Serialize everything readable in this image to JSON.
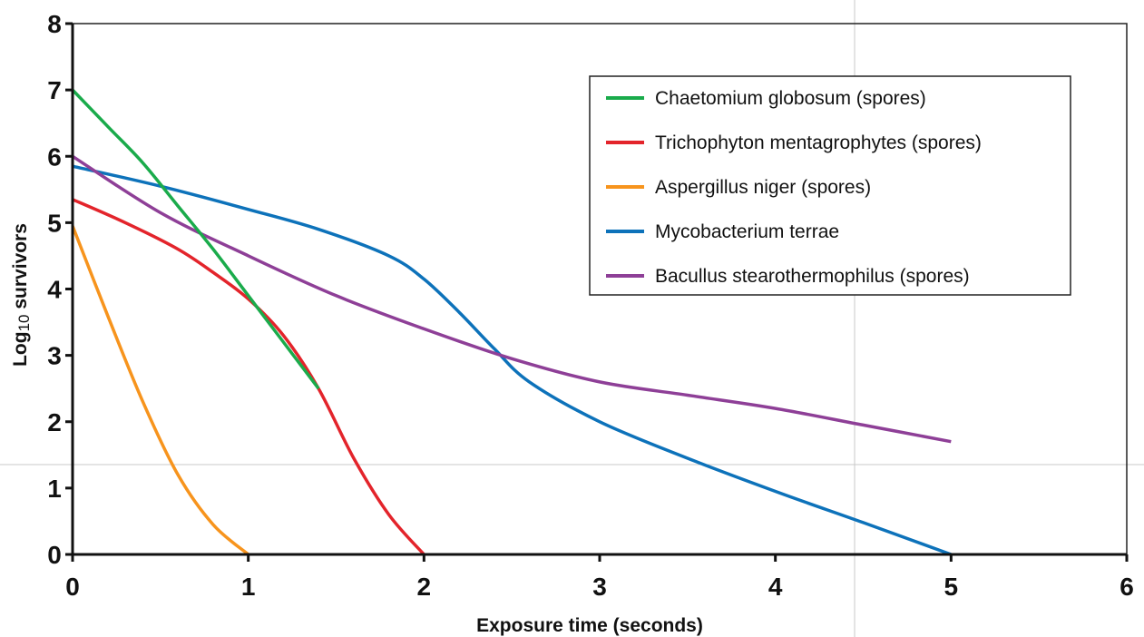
{
  "chart_data": {
    "type": "line",
    "title": "",
    "xlabel": "Exposure time (seconds)",
    "ylabel_parts": [
      "Log",
      "10",
      " survivors"
    ],
    "xlim": [
      0,
      6
    ],
    "ylim": [
      0,
      8
    ],
    "xticks": [
      0,
      1,
      2,
      3,
      4,
      5,
      6
    ],
    "yticks": [
      0,
      1,
      2,
      3,
      4,
      5,
      6,
      7,
      8
    ],
    "grid": false,
    "legend_position": "top-right",
    "series": [
      {
        "name": "Chaetomium globosum (spores)",
        "color": "#1aab4b",
        "points": [
          [
            0,
            7.0
          ],
          [
            0.2,
            6.45
          ],
          [
            0.4,
            5.9
          ],
          [
            0.6,
            5.25
          ],
          [
            0.8,
            4.6
          ],
          [
            1.0,
            3.9
          ],
          [
            1.2,
            3.2
          ],
          [
            1.4,
            2.5
          ]
        ]
      },
      {
        "name": "Trichophyton mentagrophytes (spores)",
        "color": "#e3242b",
        "points": [
          [
            0,
            5.35
          ],
          [
            0.3,
            5.0
          ],
          [
            0.6,
            4.6
          ],
          [
            0.8,
            4.25
          ],
          [
            1.0,
            3.85
          ],
          [
            1.2,
            3.3
          ],
          [
            1.4,
            2.5
          ],
          [
            1.6,
            1.45
          ],
          [
            1.8,
            0.6
          ],
          [
            2.0,
            0.0
          ]
        ]
      },
      {
        "name": "Aspergillus niger (spores)",
        "color": "#f7941d",
        "points": [
          [
            0,
            4.95
          ],
          [
            0.2,
            3.6
          ],
          [
            0.4,
            2.3
          ],
          [
            0.6,
            1.2
          ],
          [
            0.8,
            0.45
          ],
          [
            1.0,
            0.0
          ]
        ]
      },
      {
        "name": "Mycobacterium terrae",
        "color": "#0d72ba",
        "points": [
          [
            0,
            5.85
          ],
          [
            0.5,
            5.55
          ],
          [
            1.0,
            5.2
          ],
          [
            1.4,
            4.9
          ],
          [
            1.8,
            4.5
          ],
          [
            2.0,
            4.15
          ],
          [
            2.2,
            3.65
          ],
          [
            2.4,
            3.1
          ],
          [
            2.6,
            2.6
          ],
          [
            3.0,
            2.0
          ],
          [
            3.5,
            1.45
          ],
          [
            4.0,
            0.95
          ],
          [
            4.5,
            0.48
          ],
          [
            5.0,
            0.0
          ]
        ]
      },
      {
        "name": "Bacullus stearothermophilus (spores)",
        "color": "#8e3f97",
        "points": [
          [
            0,
            6.0
          ],
          [
            0.5,
            5.15
          ],
          [
            1.0,
            4.5
          ],
          [
            1.5,
            3.9
          ],
          [
            2.0,
            3.4
          ],
          [
            2.5,
            2.95
          ],
          [
            3.0,
            2.6
          ],
          [
            3.5,
            2.4
          ],
          [
            4.0,
            2.2
          ],
          [
            4.5,
            1.95
          ],
          [
            5.0,
            1.7
          ]
        ]
      }
    ]
  }
}
